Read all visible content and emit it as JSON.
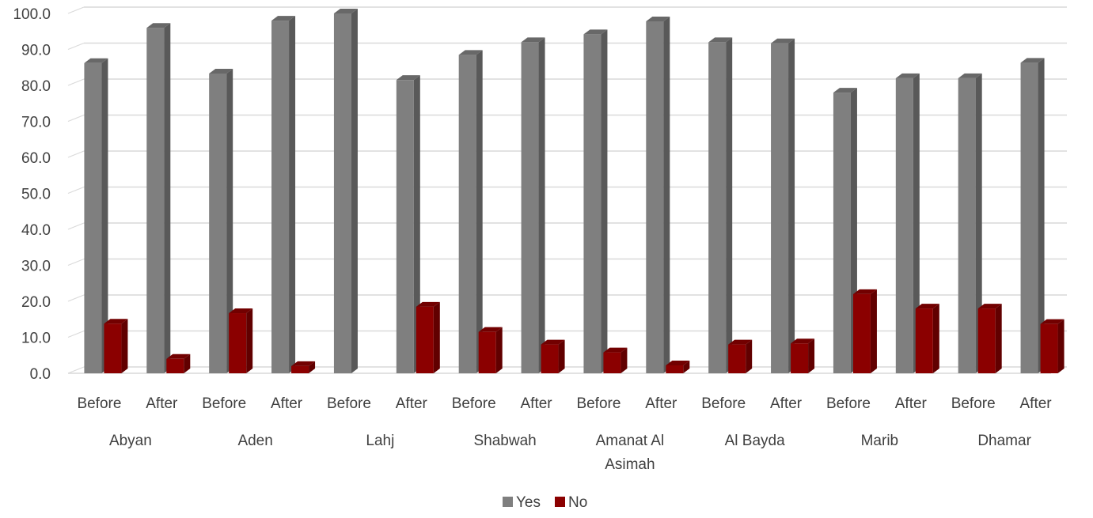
{
  "chart_data": {
    "type": "bar",
    "title": "",
    "xlabel": "",
    "ylabel": "",
    "ylim": [
      0,
      100
    ],
    "yticks": [
      "0.0",
      "10.0",
      "20.0",
      "30.0",
      "40.0",
      "50.0",
      "60.0",
      "70.0",
      "80.0",
      "90.0",
      "100.0"
    ],
    "grid": true,
    "legend_position": "bottom",
    "groups": [
      {
        "name": "Abyan",
        "label_lines": [
          "Abyan"
        ]
      },
      {
        "name": "Aden",
        "label_lines": [
          "Aden"
        ]
      },
      {
        "name": "Lahj",
        "label_lines": [
          "Lahj"
        ]
      },
      {
        "name": "Shabwah",
        "label_lines": [
          "Shabwah"
        ]
      },
      {
        "name": "Amanat Al Asimah",
        "label_lines": [
          "Amanat Al",
          "Asimah"
        ]
      },
      {
        "name": "Al Bayda",
        "label_lines": [
          "Al Bayda"
        ]
      },
      {
        "name": "Marib",
        "label_lines": [
          "Marib"
        ]
      },
      {
        "name": "Dhamar",
        "label_lines": [
          "Dhamar"
        ]
      }
    ],
    "categories": [
      "Before",
      "After",
      "Before",
      "After",
      "Before",
      "After",
      "Before",
      "After",
      "Before",
      "After",
      "Before",
      "After",
      "Before",
      "After",
      "Before",
      "After"
    ],
    "series": [
      {
        "name": "Yes",
        "color": "#7f7f7f",
        "values": [
          86.2,
          96.0,
          83.3,
          98.0,
          100.0,
          81.5,
          88.5,
          92.0,
          94.2,
          97.8,
          92.0,
          91.7,
          78.0,
          82.0,
          82.0,
          86.3
        ]
      },
      {
        "name": "No",
        "color": "#8b0000",
        "values": [
          13.8,
          4.0,
          16.7,
          2.0,
          0.0,
          18.5,
          11.5,
          8.0,
          5.8,
          2.2,
          8.0,
          8.3,
          22.0,
          18.0,
          18.0,
          13.7
        ]
      }
    ]
  }
}
